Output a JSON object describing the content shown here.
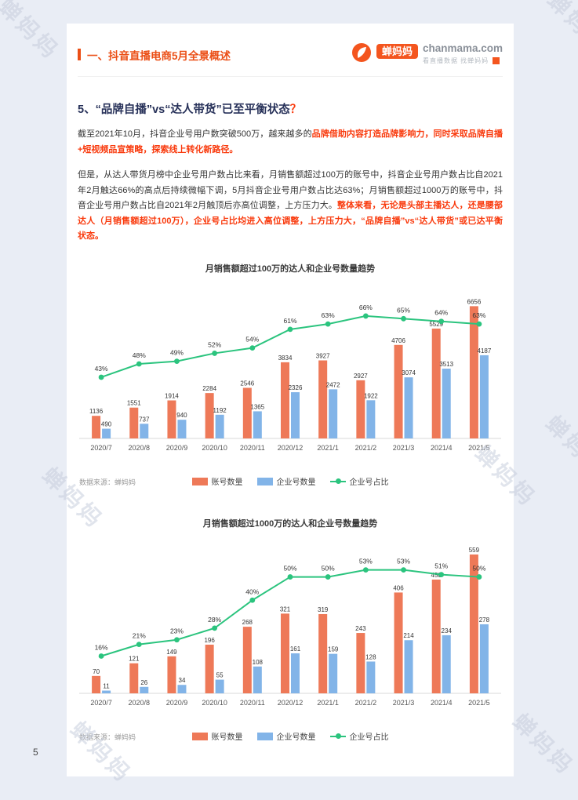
{
  "page": {
    "number": "5",
    "watermark": "蝉妈妈"
  },
  "header": {
    "section_title": "一、抖音直播电商5月全景概述",
    "logo": {
      "brand": "蝉妈妈",
      "domain": "chanmama.com",
      "tagline": "看直播数据 找蝉妈妈"
    }
  },
  "content": {
    "heading": {
      "main": "5、“品牌自播”vs“达人带货”已至平衡状态",
      "mark": "？"
    },
    "para1_normal": "截至2021年10月，抖音企业号用户数突破500万，越来越多的",
    "para1_highlight": "品牌借助内容打造品牌影响力，同时采取品牌自播+短视频品宣策略，探索线上转化新路径。",
    "para2_normal": "但是，从达人带货月榜中企业号用户数占比来看，月销售额超过100万的账号中，抖音企业号用户数占比自2021年2月触达66%的高点后持续微幅下调，5月抖音企业号用户数占比达63%；月销售额超过1000万的账号中，抖音企业号用户数占比自2021年2月触顶后亦高位调整，上方压力大。",
    "para2_highlight": "整体来看，无论是头部主播达人，还是腰部达人（月销售额超过100万），企业号占比均进入高位调整，上方压力大，“品牌自播”vs“达人带货”或已达平衡状态。"
  },
  "chart_data": [
    {
      "type": "bar",
      "title": "月销售额超过100万的达人和企业号数量趋势",
      "categories": [
        "2020/7",
        "2020/8",
        "2020/9",
        "2020/10",
        "2020/11",
        "2020/12",
        "2021/1",
        "2021/2",
        "2021/3",
        "2021/4",
        "2021/5"
      ],
      "series": [
        {
          "name": "账号数量",
          "kind": "bar",
          "color": "#EE7958",
          "values": [
            1136,
            1551,
            1914,
            2284,
            2546,
            3834,
            3927,
            2927,
            4706,
            5529,
            6656
          ]
        },
        {
          "name": "企业号数量",
          "kind": "bar",
          "color": "#82B4E8",
          "values": [
            490,
            737,
            940,
            1192,
            1365,
            2326,
            2472,
            1922,
            3074,
            3513,
            4187
          ]
        },
        {
          "name": "企业号占比",
          "kind": "line",
          "color": "#2BC47E",
          "unit": "%",
          "values": [
            43,
            48,
            49,
            52,
            54,
            61,
            63,
            66,
            65,
            64,
            63
          ]
        }
      ],
      "bar_axis": [
        0,
        7500
      ],
      "line_axis": [
        20,
        76
      ],
      "grid": false,
      "legend_position": "bottom",
      "source": "数据来源：蝉妈妈"
    },
    {
      "type": "bar",
      "title": "月销售额超过1000万的达人和企业号数量趋势",
      "categories": [
        "2020/7",
        "2020/8",
        "2020/9",
        "2020/10",
        "2020/11",
        "2020/12",
        "2021/1",
        "2021/2",
        "2021/3",
        "2021/4",
        "2021/5"
      ],
      "series": [
        {
          "name": "账号数量",
          "kind": "bar",
          "color": "#EE7958",
          "values": [
            70,
            121,
            149,
            196,
            268,
            321,
            319,
            243,
            406,
            458,
            559
          ]
        },
        {
          "name": "企业号数量",
          "kind": "bar",
          "color": "#82B4E8",
          "values": [
            11,
            26,
            34,
            55,
            108,
            161,
            159,
            128,
            214,
            234,
            278
          ]
        },
        {
          "name": "企业号占比",
          "kind": "line",
          "color": "#2BC47E",
          "unit": "%",
          "values": [
            16,
            21,
            23,
            28,
            40,
            50,
            50,
            53,
            53,
            51,
            50
          ]
        }
      ],
      "bar_axis": [
        0,
        600
      ],
      "line_axis": [
        0,
        64
      ],
      "grid": false,
      "legend_position": "bottom",
      "source": "数据来源：蝉妈妈"
    }
  ],
  "colors": {
    "accent_orange": "#F4551E",
    "header_text": "#EB4F16",
    "heading_navy": "#273159",
    "highlight_red": "#F93A0D",
    "bar_orange": "#EE7958",
    "bar_blue": "#82B4E8",
    "line_green": "#2BC47E",
    "page_bg": "#E9EDF5",
    "watermark_gray": "#C7CEDD"
  }
}
